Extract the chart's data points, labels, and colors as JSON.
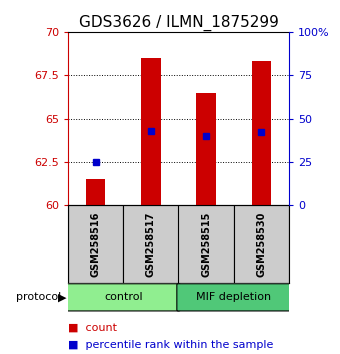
{
  "title": "GDS3626 / ILMN_1875299",
  "samples": [
    "GSM258516",
    "GSM258517",
    "GSM258515",
    "GSM258530"
  ],
  "groups": [
    {
      "name": "control",
      "indices": [
        0,
        1
      ],
      "color": "#90EE90"
    },
    {
      "name": "MIF depletion",
      "indices": [
        2,
        3
      ],
      "color": "#50C878"
    }
  ],
  "bar_bottom": 60,
  "bar_tops": [
    61.5,
    68.5,
    66.5,
    68.3
  ],
  "bar_color": "#CC0000",
  "bar_width": 0.35,
  "percentile_values": [
    62.5,
    64.3,
    64.0,
    64.2
  ],
  "percentile_color": "#0000CC",
  "ylim": [
    60,
    70
  ],
  "yticks_left": [
    60,
    62.5,
    65,
    67.5,
    70
  ],
  "yticks_right": [
    0,
    25,
    50,
    75,
    100
  ],
  "ylabel_left_color": "#CC0000",
  "ylabel_right_color": "#0000CC",
  "grid_dotted": true,
  "background_color": "#ffffff",
  "plot_bg": "#ffffff",
  "sample_box_color": "#cccccc",
  "title_fontsize": 11,
  "tick_fontsize": 8,
  "legend_fontsize": 8
}
